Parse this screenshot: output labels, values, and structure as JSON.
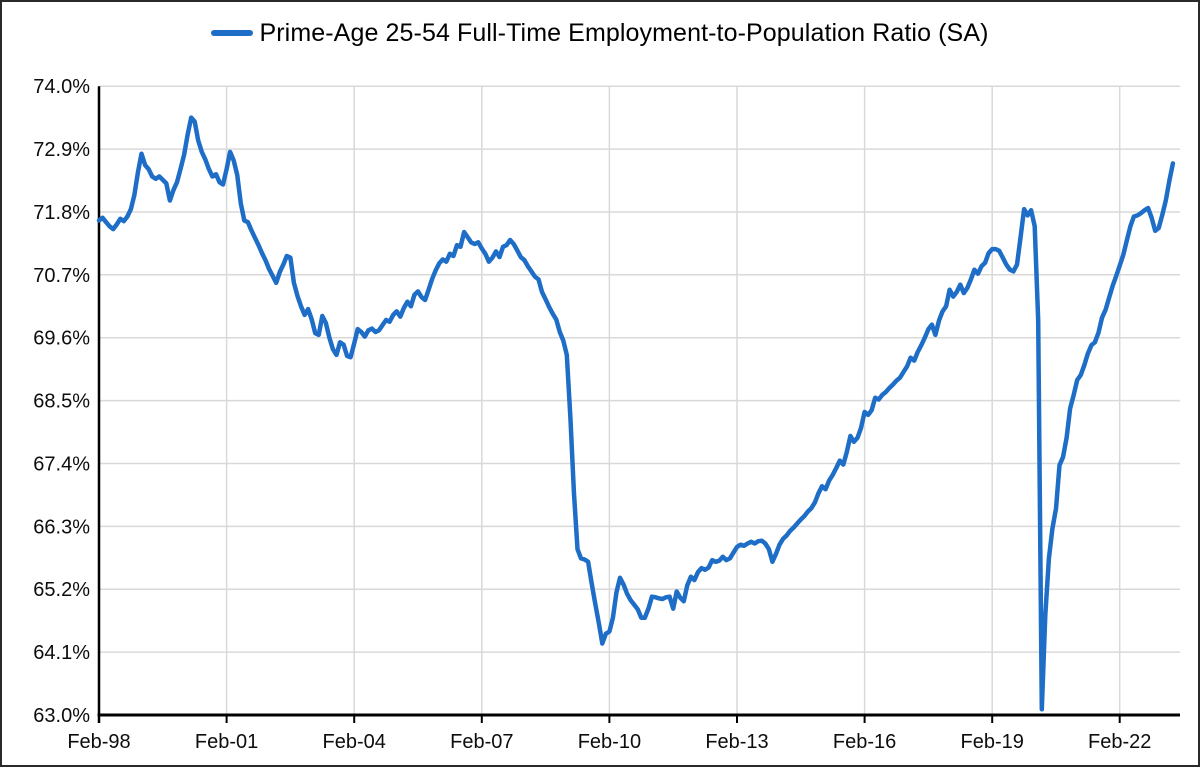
{
  "chart_data": {
    "type": "line",
    "title": "Prime-Age 25-54 Full-Time Employment-to-Population Ratio (SA)",
    "legend_position": "top-center",
    "grid": true,
    "colors": {
      "line": "#1e6ec8",
      "grid": "#d9d9d9",
      "axis": "#000000",
      "text": "#0d0d0d",
      "background": "#ffffff"
    },
    "y_axis": {
      "min": 63.0,
      "max": 74.0,
      "tick_step": 1.1,
      "format": "percent",
      "tick_labels": [
        "63.0%",
        "64.1%",
        "65.2%",
        "66.3%",
        "67.4%",
        "68.5%",
        "69.6%",
        "70.7%",
        "71.8%",
        "72.9%",
        "74.0%"
      ]
    },
    "x_axis": {
      "tick_labels": [
        "Feb-98",
        "Feb-01",
        "Feb-04",
        "Feb-07",
        "Feb-10",
        "Feb-13",
        "Feb-16",
        "Feb-19",
        "Feb-22"
      ],
      "tick_interval_months": 36,
      "domain_months": [
        0,
        305
      ]
    },
    "series": [
      {
        "name": "Prime-Age 25-54 Full-Time Employment-to-Population Ratio (SA)",
        "start": "Feb-1998",
        "end": "May-2023",
        "frequency": "monthly",
        "unit": "percent",
        "values": [
          71.65,
          71.7,
          71.62,
          71.55,
          71.5,
          71.58,
          71.68,
          71.64,
          71.72,
          71.85,
          72.1,
          72.5,
          72.82,
          72.62,
          72.55,
          72.42,
          72.38,
          72.42,
          72.36,
          72.3,
          72.0,
          72.18,
          72.32,
          72.55,
          72.8,
          73.15,
          73.45,
          73.38,
          73.05,
          72.85,
          72.72,
          72.55,
          72.42,
          72.46,
          72.32,
          72.28,
          72.55,
          72.85,
          72.7,
          72.45,
          71.95,
          71.65,
          71.62,
          71.48,
          71.35,
          71.22,
          71.08,
          70.95,
          70.8,
          70.68,
          70.56,
          70.75,
          70.88,
          71.03,
          71.0,
          70.56,
          70.33,
          70.15,
          70.0,
          70.1,
          69.92,
          69.68,
          69.65,
          69.98,
          69.86,
          69.6,
          69.4,
          69.3,
          69.52,
          69.48,
          69.28,
          69.26,
          69.5,
          69.75,
          69.7,
          69.62,
          69.73,
          69.76,
          69.7,
          69.73,
          69.82,
          69.91,
          69.88,
          70.0,
          70.06,
          69.97,
          70.12,
          70.23,
          70.15,
          70.35,
          70.41,
          70.31,
          70.26,
          70.44,
          70.63,
          70.78,
          70.9,
          70.97,
          70.93,
          71.07,
          71.03,
          71.22,
          71.19,
          71.45,
          71.36,
          71.27,
          71.24,
          71.27,
          71.16,
          71.07,
          70.93,
          71.0,
          71.11,
          71.01,
          71.19,
          71.22,
          71.31,
          71.24,
          71.13,
          71.01,
          70.96,
          70.85,
          70.76,
          70.67,
          70.62,
          70.4,
          70.27,
          70.14,
          70.02,
          69.92,
          69.7,
          69.55,
          69.3,
          68.2,
          66.9,
          65.9,
          65.74,
          65.72,
          65.68,
          65.3,
          64.95,
          64.62,
          64.25,
          64.42,
          64.46,
          64.7,
          65.15,
          65.4,
          65.28,
          65.12,
          65.01,
          64.93,
          64.85,
          64.7,
          64.7,
          64.86,
          65.07,
          65.06,
          65.04,
          65.03,
          65.06,
          65.07,
          64.86,
          65.16,
          65.05,
          64.99,
          65.27,
          65.42,
          65.36,
          65.5,
          65.57,
          65.54,
          65.58,
          65.71,
          65.68,
          65.7,
          65.77,
          65.71,
          65.74,
          65.84,
          65.94,
          65.98,
          65.96,
          66.0,
          66.03,
          66.0,
          66.04,
          66.05,
          66.0,
          65.9,
          65.68,
          65.82,
          65.98,
          66.08,
          66.14,
          66.22,
          66.28,
          66.35,
          66.42,
          66.48,
          66.56,
          66.62,
          66.72,
          66.88,
          67.0,
          66.95,
          67.1,
          67.2,
          67.32,
          67.45,
          67.38,
          67.6,
          67.88,
          67.78,
          67.85,
          68.02,
          68.3,
          68.25,
          68.33,
          68.55,
          68.52,
          68.6,
          68.65,
          68.72,
          68.78,
          68.85,
          68.9,
          69.0,
          69.1,
          69.25,
          69.2,
          69.35,
          69.47,
          69.6,
          69.75,
          69.83,
          69.65,
          69.9,
          70.06,
          70.15,
          70.44,
          70.32,
          70.4,
          70.53,
          70.38,
          70.47,
          70.62,
          70.79,
          70.72,
          70.85,
          70.91,
          71.08,
          71.15,
          71.15,
          71.12,
          71.0,
          70.88,
          70.79,
          70.76,
          70.88,
          71.35,
          71.85,
          71.74,
          71.83,
          71.55,
          69.9,
          63.1,
          64.75,
          65.74,
          66.26,
          66.61,
          67.37,
          67.51,
          67.85,
          68.36,
          68.6,
          68.86,
          68.95,
          69.12,
          69.32,
          69.47,
          69.52,
          69.69,
          69.95,
          70.09,
          70.3,
          70.51,
          70.68,
          70.86,
          71.05,
          71.3,
          71.55,
          71.72,
          71.74,
          71.78,
          71.83,
          71.87,
          71.7,
          71.47,
          71.52,
          71.75,
          72.0,
          72.35,
          72.65
        ]
      }
    ]
  }
}
